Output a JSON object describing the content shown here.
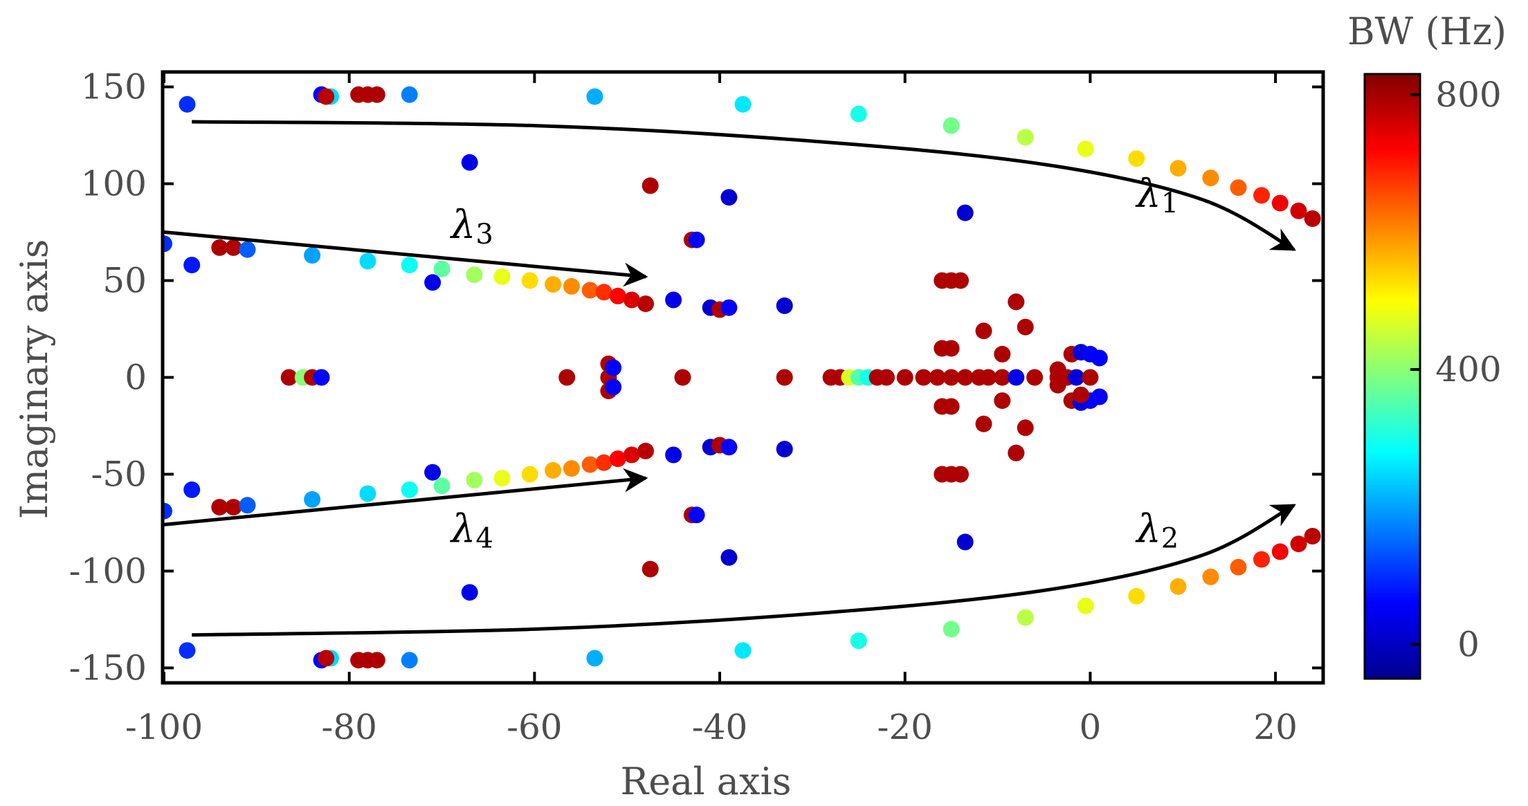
{
  "chart_data": {
    "type": "scatter",
    "xlabel": "Real axis",
    "ylabel": "Imaginary axis",
    "xlim": [
      -100,
      25
    ],
    "ylim": [
      -157,
      157
    ],
    "xticks": [
      -100,
      -80,
      -60,
      -40,
      -20,
      0,
      20
    ],
    "yticks": [
      150,
      100,
      50,
      0,
      -50,
      -100,
      -150
    ],
    "colorbar": {
      "label": "BW (Hz)",
      "min": -50,
      "max": 830,
      "ticks": [
        0,
        400,
        800
      ]
    },
    "annotations": [
      {
        "sym": "λ",
        "sub": "1",
        "x": 5,
        "y": 88
      },
      {
        "sym": "λ",
        "sub": "2",
        "x": 5,
        "y": -85
      },
      {
        "sym": "λ",
        "sub": "3",
        "x": -69,
        "y": 72
      },
      {
        "sym": "λ",
        "sub": "4",
        "x": -69,
        "y": -85
      }
    ],
    "arrows": [
      {
        "name": "arrow-lambda1",
        "points": [
          [
            -97,
            132
          ],
          [
            -60,
            130
          ],
          [
            -30,
            122
          ],
          [
            -5,
            110
          ],
          [
            12,
            92
          ],
          [
            22,
            66
          ]
        ]
      },
      {
        "name": "arrow-lambda2",
        "points": [
          [
            -97,
            -133
          ],
          [
            -60,
            -130
          ],
          [
            -30,
            -122
          ],
          [
            -5,
            -110
          ],
          [
            12,
            -92
          ],
          [
            22,
            -66
          ]
        ]
      },
      {
        "name": "arrow-lambda3",
        "points": [
          [
            -100,
            75
          ],
          [
            -48,
            52
          ]
        ]
      },
      {
        "name": "arrow-lambda4",
        "points": [
          [
            -100,
            -76
          ],
          [
            -48,
            -52
          ]
        ]
      }
    ],
    "points": [
      {
        "x": -97.5,
        "y": 141,
        "bw": 100
      },
      {
        "x": -83,
        "y": 146,
        "bw": 60
      },
      {
        "x": -82,
        "y": 145,
        "bw": 250
      },
      {
        "x": -82.5,
        "y": 145,
        "bw": 780
      },
      {
        "x": -79,
        "y": 146,
        "bw": 790
      },
      {
        "x": -78,
        "y": 146,
        "bw": 790
      },
      {
        "x": -77,
        "y": 146,
        "bw": 790
      },
      {
        "x": -73.5,
        "y": 146,
        "bw": 170
      },
      {
        "x": -53.5,
        "y": 145,
        "bw": 210
      },
      {
        "x": -37.5,
        "y": 141,
        "bw": 260
      },
      {
        "x": -25,
        "y": 136,
        "bw": 300
      },
      {
        "x": -15,
        "y": 130,
        "bw": 380
      },
      {
        "x": -7,
        "y": 124,
        "bw": 440
      },
      {
        "x": -0.5,
        "y": 118,
        "bw": 480
      },
      {
        "x": 5,
        "y": 113,
        "bw": 530
      },
      {
        "x": 9.5,
        "y": 108,
        "bw": 570
      },
      {
        "x": 13,
        "y": 103,
        "bw": 600
      },
      {
        "x": 16,
        "y": 98,
        "bw": 640
      },
      {
        "x": 18.5,
        "y": 94,
        "bw": 690
      },
      {
        "x": 20.5,
        "y": 90,
        "bw": 730
      },
      {
        "x": 22.5,
        "y": 86,
        "bw": 760
      },
      {
        "x": 24,
        "y": 82,
        "bw": 780
      },
      {
        "x": -67,
        "y": 111,
        "bw": 40
      },
      {
        "x": -47.5,
        "y": 99,
        "bw": 790
      },
      {
        "x": -39,
        "y": 93,
        "bw": 20
      },
      {
        "x": -13.5,
        "y": 85,
        "bw": 20
      },
      {
        "x": -43,
        "y": 71,
        "bw": 790
      },
      {
        "x": -42.5,
        "y": 71,
        "bw": 60
      },
      {
        "x": -100,
        "y": 69,
        "bw": 100
      },
      {
        "x": -97,
        "y": 58,
        "bw": 80
      },
      {
        "x": -94,
        "y": 67,
        "bw": 790
      },
      {
        "x": -92.5,
        "y": 67,
        "bw": 790
      },
      {
        "x": -91,
        "y": 66,
        "bw": 140
      },
      {
        "x": -84,
        "y": 63,
        "bw": 200
      },
      {
        "x": -78,
        "y": 60,
        "bw": 250
      },
      {
        "x": -73.5,
        "y": 58,
        "bw": 290
      },
      {
        "x": -70,
        "y": 56,
        "bw": 360
      },
      {
        "x": -66.5,
        "y": 53,
        "bw": 420
      },
      {
        "x": -63.5,
        "y": 52,
        "bw": 480
      },
      {
        "x": -60.5,
        "y": 50,
        "bw": 530
      },
      {
        "x": -58,
        "y": 48,
        "bw": 570
      },
      {
        "x": -56,
        "y": 47,
        "bw": 600
      },
      {
        "x": -54,
        "y": 45,
        "bw": 640
      },
      {
        "x": -52.5,
        "y": 44,
        "bw": 680
      },
      {
        "x": -51,
        "y": 42,
        "bw": 720
      },
      {
        "x": -49.5,
        "y": 40,
        "bw": 750
      },
      {
        "x": -48,
        "y": 38,
        "bw": 780
      },
      {
        "x": -71,
        "y": 49,
        "bw": 40
      },
      {
        "x": -45,
        "y": 40,
        "bw": 40
      },
      {
        "x": -41,
        "y": 36,
        "bw": 20
      },
      {
        "x": -40,
        "y": 35,
        "bw": 790
      },
      {
        "x": -39,
        "y": 36,
        "bw": 60
      },
      {
        "x": -33,
        "y": 37,
        "bw": 20
      },
      {
        "x": -16,
        "y": 50,
        "bw": 790
      },
      {
        "x": -15,
        "y": 50,
        "bw": 790
      },
      {
        "x": -14,
        "y": 50,
        "bw": 790
      },
      {
        "x": -8,
        "y": 39,
        "bw": 40
      },
      {
        "x": -8,
        "y": 39,
        "bw": 790
      },
      {
        "x": -11.5,
        "y": 24,
        "bw": 790
      },
      {
        "x": -7,
        "y": 26,
        "bw": 790
      },
      {
        "x": -9.5,
        "y": 12,
        "bw": 790
      },
      {
        "x": -15,
        "y": 15,
        "bw": 790
      },
      {
        "x": -16,
        "y": 15,
        "bw": 790
      },
      {
        "x": -86.5,
        "y": 0,
        "bw": 790
      },
      {
        "x": -85,
        "y": 0,
        "bw": 400
      },
      {
        "x": -84,
        "y": 0,
        "bw": 790
      },
      {
        "x": -83,
        "y": 0,
        "bw": 60
      },
      {
        "x": -56.5,
        "y": 0,
        "bw": 790
      },
      {
        "x": -52,
        "y": 0,
        "bw": 790
      },
      {
        "x": -44,
        "y": 0,
        "bw": 790
      },
      {
        "x": -33,
        "y": 0,
        "bw": 790
      },
      {
        "x": -28,
        "y": 0,
        "bw": 790
      },
      {
        "x": -27,
        "y": 0,
        "bw": 790
      },
      {
        "x": -26,
        "y": 0,
        "bw": 470
      },
      {
        "x": -25,
        "y": 0,
        "bw": 350
      },
      {
        "x": -24,
        "y": 0,
        "bw": 300
      },
      {
        "x": -23,
        "y": 0,
        "bw": 790
      },
      {
        "x": -22,
        "y": 0,
        "bw": 790
      },
      {
        "x": -20,
        "y": 0,
        "bw": 790
      },
      {
        "x": -18,
        "y": 0,
        "bw": 790
      },
      {
        "x": -16.5,
        "y": 0,
        "bw": 790
      },
      {
        "x": -15,
        "y": 0,
        "bw": 790
      },
      {
        "x": -13.5,
        "y": 0,
        "bw": 790
      },
      {
        "x": -12,
        "y": 0,
        "bw": 790
      },
      {
        "x": -11,
        "y": 0,
        "bw": 790
      },
      {
        "x": -9.5,
        "y": 0,
        "bw": 790
      },
      {
        "x": -8,
        "y": 0,
        "bw": 40
      },
      {
        "x": -6,
        "y": 0,
        "bw": 790
      },
      {
        "x": -3.5,
        "y": 0,
        "bw": 790
      },
      {
        "x": -2.5,
        "y": 0,
        "bw": 790
      },
      {
        "x": -1.5,
        "y": 0,
        "bw": 30
      },
      {
        "x": 0,
        "y": 0,
        "bw": 790
      },
      {
        "x": -52,
        "y": 7,
        "bw": 790
      },
      {
        "x": -52,
        "y": -7,
        "bw": 790
      },
      {
        "x": -51.5,
        "y": 5,
        "bw": 60
      },
      {
        "x": -51.5,
        "y": -5,
        "bw": 60
      },
      {
        "x": -2,
        "y": 12,
        "bw": 790
      },
      {
        "x": -1,
        "y": 13,
        "bw": 30
      },
      {
        "x": 0,
        "y": 12,
        "bw": 60
      },
      {
        "x": 1,
        "y": 10,
        "bw": 60
      },
      {
        "x": -2,
        "y": -12,
        "bw": 790
      },
      {
        "x": -1,
        "y": -13,
        "bw": 30
      },
      {
        "x": 0,
        "y": -12,
        "bw": 60
      },
      {
        "x": 1,
        "y": -10,
        "bw": 60
      },
      {
        "x": -3.5,
        "y": 4,
        "bw": 790
      },
      {
        "x": -3.5,
        "y": -4,
        "bw": 790
      },
      {
        "x": -1,
        "y": -9,
        "bw": 790
      },
      {
        "x": -97.5,
        "y": -141,
        "bw": 100
      },
      {
        "x": -83,
        "y": -146,
        "bw": 60
      },
      {
        "x": -82,
        "y": -145,
        "bw": 250
      },
      {
        "x": -82.5,
        "y": -145,
        "bw": 780
      },
      {
        "x": -79,
        "y": -146,
        "bw": 790
      },
      {
        "x": -78,
        "y": -146,
        "bw": 790
      },
      {
        "x": -77,
        "y": -146,
        "bw": 790
      },
      {
        "x": -73.5,
        "y": -146,
        "bw": 170
      },
      {
        "x": -53.5,
        "y": -145,
        "bw": 210
      },
      {
        "x": -37.5,
        "y": -141,
        "bw": 260
      },
      {
        "x": -25,
        "y": -136,
        "bw": 300
      },
      {
        "x": -15,
        "y": -130,
        "bw": 380
      },
      {
        "x": -7,
        "y": -124,
        "bw": 440
      },
      {
        "x": -0.5,
        "y": -118,
        "bw": 480
      },
      {
        "x": 5,
        "y": -113,
        "bw": 530
      },
      {
        "x": 9.5,
        "y": -108,
        "bw": 570
      },
      {
        "x": 13,
        "y": -103,
        "bw": 600
      },
      {
        "x": 16,
        "y": -98,
        "bw": 640
      },
      {
        "x": 18.5,
        "y": -94,
        "bw": 690
      },
      {
        "x": 20.5,
        "y": -90,
        "bw": 730
      },
      {
        "x": 22.5,
        "y": -86,
        "bw": 760
      },
      {
        "x": 24,
        "y": -82,
        "bw": 780
      },
      {
        "x": -67,
        "y": -111,
        "bw": 40
      },
      {
        "x": -47.5,
        "y": -99,
        "bw": 790
      },
      {
        "x": -39,
        "y": -93,
        "bw": 20
      },
      {
        "x": -13.5,
        "y": -85,
        "bw": 20
      },
      {
        "x": -43,
        "y": -71,
        "bw": 790
      },
      {
        "x": -42.5,
        "y": -71,
        "bw": 60
      },
      {
        "x": -100,
        "y": -69,
        "bw": 100
      },
      {
        "x": -97,
        "y": -58,
        "bw": 80
      },
      {
        "x": -94,
        "y": -67,
        "bw": 790
      },
      {
        "x": -92.5,
        "y": -67,
        "bw": 790
      },
      {
        "x": -91,
        "y": -66,
        "bw": 140
      },
      {
        "x": -84,
        "y": -63,
        "bw": 200
      },
      {
        "x": -78,
        "y": -60,
        "bw": 250
      },
      {
        "x": -73.5,
        "y": -58,
        "bw": 290
      },
      {
        "x": -70,
        "y": -56,
        "bw": 360
      },
      {
        "x": -66.5,
        "y": -53,
        "bw": 420
      },
      {
        "x": -63.5,
        "y": -52,
        "bw": 480
      },
      {
        "x": -60.5,
        "y": -50,
        "bw": 530
      },
      {
        "x": -58,
        "y": -48,
        "bw": 570
      },
      {
        "x": -56,
        "y": -47,
        "bw": 600
      },
      {
        "x": -54,
        "y": -45,
        "bw": 640
      },
      {
        "x": -52.5,
        "y": -44,
        "bw": 680
      },
      {
        "x": -51,
        "y": -42,
        "bw": 720
      },
      {
        "x": -49.5,
        "y": -40,
        "bw": 750
      },
      {
        "x": -48,
        "y": -38,
        "bw": 780
      },
      {
        "x": -71,
        "y": -49,
        "bw": 40
      },
      {
        "x": -45,
        "y": -40,
        "bw": 40
      },
      {
        "x": -41,
        "y": -36,
        "bw": 20
      },
      {
        "x": -40,
        "y": -35,
        "bw": 790
      },
      {
        "x": -39,
        "y": -36,
        "bw": 60
      },
      {
        "x": -33,
        "y": -37,
        "bw": 20
      },
      {
        "x": -16,
        "y": -50,
        "bw": 790
      },
      {
        "x": -15,
        "y": -50,
        "bw": 790
      },
      {
        "x": -14,
        "y": -50,
        "bw": 790
      },
      {
        "x": -8,
        "y": -39,
        "bw": 40
      },
      {
        "x": -8,
        "y": -39,
        "bw": 790
      },
      {
        "x": -11.5,
        "y": -24,
        "bw": 790
      },
      {
        "x": -7,
        "y": -26,
        "bw": 790
      },
      {
        "x": -9.5,
        "y": -12,
        "bw": 790
      },
      {
        "x": -15,
        "y": -15,
        "bw": 790
      },
      {
        "x": -16,
        "y": -15,
        "bw": 790
      }
    ]
  }
}
